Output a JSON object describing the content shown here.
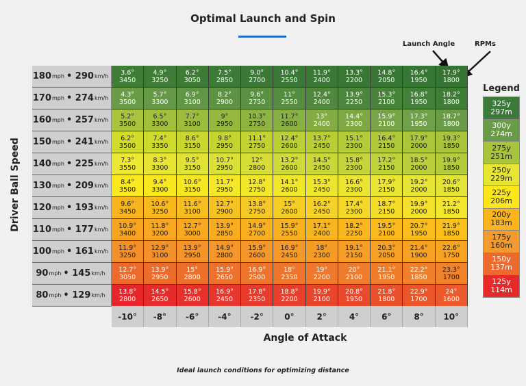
{
  "chart_data": {
    "type": "table",
    "title": "Optimal Launch and Spin",
    "ylabel": "Driver Ball Speed",
    "xlabel": "Angle of Attack",
    "caption": "Ideal launch conditions for optimizing distance",
    "annotations": {
      "launch_angle": "Launch Angle",
      "rpms": "RPMs"
    },
    "columns": [
      "-10°",
      "-8°",
      "-6°",
      "-4°",
      "-2°",
      "0°",
      "2°",
      "4°",
      "6°",
      "8°",
      "10°"
    ],
    "rows": [
      {
        "mph": "180",
        "kmh": "290",
        "colors": [
          "#3f7d37",
          "#357433"
        ],
        "cells": [
          [
            "3.6°",
            "3450"
          ],
          [
            "4.9°",
            "3250"
          ],
          [
            "6.2°",
            "3050"
          ],
          [
            "7.5°",
            "2850"
          ],
          [
            "9.0°",
            "2700"
          ],
          [
            "10.4°",
            "2550"
          ],
          [
            "11.9°",
            "2400"
          ],
          [
            "13.3°",
            "2200"
          ],
          [
            "14.8°",
            "2050"
          ],
          [
            "16.4°",
            "1950"
          ],
          [
            "17.9°",
            "1800"
          ]
        ]
      },
      {
        "mph": "170",
        "kmh": "274",
        "colors": [
          "#6a9c48",
          "#3f7d37"
        ],
        "cells": [
          [
            "4.3°",
            "3500"
          ],
          [
            "5.7°",
            "3300"
          ],
          [
            "6.9°",
            "3100"
          ],
          [
            "8.2°",
            "2900"
          ],
          [
            "9.6°",
            "2750"
          ],
          [
            "11°",
            "2550"
          ],
          [
            "12.4°",
            "2400"
          ],
          [
            "13.9°",
            "2250"
          ],
          [
            "15.3°",
            "2100"
          ],
          [
            "16.8°",
            "1950"
          ],
          [
            "18.2°",
            "1800"
          ]
        ]
      },
      {
        "mph": "160",
        "kmh": "257",
        "colors": [
          "#a8c43c",
          "#6a9c48"
        ],
        "cells": [
          [
            "5.2°",
            "3500"
          ],
          [
            "6.5°",
            "3300"
          ],
          [
            "7.7°",
            "3100"
          ],
          [
            "9°",
            "2950"
          ],
          [
            "10.3°",
            "2750"
          ],
          [
            "11.7°",
            "2600"
          ],
          [
            "13°",
            "2400"
          ],
          [
            "14.4°",
            "2300"
          ],
          [
            "15.9°",
            "2100"
          ],
          [
            "17.3°",
            "1950"
          ],
          [
            "18.7°",
            "1800"
          ]
        ]
      },
      {
        "mph": "150",
        "kmh": "241",
        "colors": [
          "#d2dc2a",
          "#a8c43c"
        ],
        "cells": [
          [
            "6.2°",
            "3500"
          ],
          [
            "7.4°",
            "3350"
          ],
          [
            "8.6°",
            "3150"
          ],
          [
            "9.8°",
            "2950"
          ],
          [
            "11.1°",
            "2750"
          ],
          [
            "12.4°",
            "2600"
          ],
          [
            "13.7°",
            "2450"
          ],
          [
            "15.1°",
            "2300"
          ],
          [
            "16.4°",
            "2150"
          ],
          [
            "17.9°",
            "2000"
          ],
          [
            "19.3°",
            "1850"
          ]
        ]
      },
      {
        "mph": "140",
        "kmh": "225",
        "colors": [
          "#ece834",
          "#b4cc3c"
        ],
        "cells": [
          [
            "7.3°",
            "3550"
          ],
          [
            "8.3°",
            "3300"
          ],
          [
            "9.5°",
            "3150"
          ],
          [
            "10.7°",
            "2950"
          ],
          [
            "12°",
            "2800"
          ],
          [
            "13.2°",
            "2600"
          ],
          [
            "14.5°",
            "2450"
          ],
          [
            "15.8°",
            "2300"
          ],
          [
            "17.2°",
            "2150"
          ],
          [
            "18.5°",
            "2000"
          ],
          [
            "19.9°",
            "1850"
          ]
        ]
      },
      {
        "mph": "130",
        "kmh": "209",
        "colors": [
          "#fbe81e",
          "#e4e436"
        ],
        "cells": [
          [
            "8.4°",
            "3500"
          ],
          [
            "9.4°",
            "3300"
          ],
          [
            "10.6°",
            "3150"
          ],
          [
            "11.7°",
            "2950"
          ],
          [
            "12.8°",
            "2750"
          ],
          [
            "14.1°",
            "2600"
          ],
          [
            "15.3°",
            "2450"
          ],
          [
            "16.6°",
            "2300"
          ],
          [
            "17.9°",
            "2150"
          ],
          [
            "19.2°",
            "2000"
          ],
          [
            "20.6°",
            "1850"
          ]
        ]
      },
      {
        "mph": "120",
        "kmh": "193",
        "colors": [
          "#f8b41e",
          "#f4e62c"
        ],
        "cells": [
          [
            "9.6°",
            "3450"
          ],
          [
            "10.6°",
            "3250"
          ],
          [
            "11.6°",
            "3100"
          ],
          [
            "12.7°",
            "2900"
          ],
          [
            "13.8°",
            "2750"
          ],
          [
            "15°",
            "2600"
          ],
          [
            "16.2°",
            "2450"
          ],
          [
            "17.4°",
            "2300"
          ],
          [
            "18.7°",
            "2150"
          ],
          [
            "19.9°",
            "2000"
          ],
          [
            "21.2°",
            "1850"
          ]
        ]
      },
      {
        "mph": "110",
        "kmh": "177",
        "colors": [
          "#f6a422",
          "#fbc01c"
        ],
        "cells": [
          [
            "10.9°",
            "3400"
          ],
          [
            "11.8°",
            "3200"
          ],
          [
            "12.7°",
            "3000"
          ],
          [
            "13.9°",
            "2850"
          ],
          [
            "14.9°",
            "2700"
          ],
          [
            "15.9°",
            "2550"
          ],
          [
            "17.1°",
            "2400"
          ],
          [
            "18.2°",
            "2250"
          ],
          [
            "19.5°",
            "2100"
          ],
          [
            "20.7°",
            "1950"
          ],
          [
            "21.9°",
            "1850"
          ]
        ]
      },
      {
        "mph": "100",
        "kmh": "161",
        "colors": [
          "#f3902c",
          "#f7a424"
        ],
        "cells": [
          [
            "11.9°",
            "3250"
          ],
          [
            "12.9°",
            "3100"
          ],
          [
            "13.9°",
            "2950"
          ],
          [
            "14.9°",
            "2800"
          ],
          [
            "15.9°",
            "2600"
          ],
          [
            "16.9°",
            "2450"
          ],
          [
            "18°",
            "2300"
          ],
          [
            "19.1°",
            "2150"
          ],
          [
            "20.3°",
            "2050"
          ],
          [
            "21.4°",
            "1900"
          ],
          [
            "22.6°",
            "1750"
          ]
        ]
      },
      {
        "mph": "90",
        "kmh": "145",
        "colors": [
          "#ec6a2c",
          "#f0822c"
        ],
        "cells": [
          [
            "12.7°",
            "3050"
          ],
          [
            "13.9°",
            "2950"
          ],
          [
            "15°",
            "2800"
          ],
          [
            "15.9°",
            "2650"
          ],
          [
            "16.9°",
            "2500"
          ],
          [
            "18°",
            "2350"
          ],
          [
            "19°",
            "2200"
          ],
          [
            "20°",
            "2100"
          ],
          [
            "21.1°",
            "1950"
          ],
          [
            "22.2°",
            "1850"
          ],
          [
            "23.3°",
            "1700"
          ]
        ]
      },
      {
        "mph": "80",
        "kmh": "129",
        "colors": [
          "#e6262a",
          "#ea5a2c"
        ],
        "cells": [
          [
            "13.8°",
            "2800"
          ],
          [
            "14.5°",
            "2650"
          ],
          [
            "15.8°",
            "2600"
          ],
          [
            "16.9°",
            "2450"
          ],
          [
            "17.8°",
            "2350"
          ],
          [
            "18.8°",
            "2200"
          ],
          [
            "19.9°",
            "2100"
          ],
          [
            "20.8°",
            "1950"
          ],
          [
            "21.8°",
            "1800"
          ],
          [
            "22.9°",
            "1700"
          ],
          [
            "24°",
            "1600"
          ]
        ]
      }
    ],
    "units": {
      "mph": "mph",
      "kmh": "km/h",
      "separator": "•"
    },
    "legend": {
      "title": "Legend",
      "items": [
        {
          "yards": "325y",
          "meters": "297m",
          "color": "#3b7a38",
          "text": "#ffffff"
        },
        {
          "yards": "300y",
          "meters": "274m",
          "color": "#6a9c48",
          "text": "#ffffff"
        },
        {
          "yards": "275y",
          "meters": "251m",
          "color": "#a8c43c",
          "text": "#222222"
        },
        {
          "yards": "250y",
          "meters": "229m",
          "color": "#e6e632",
          "text": "#222222"
        },
        {
          "yards": "225y",
          "meters": "206m",
          "color": "#fde61a",
          "text": "#222222"
        },
        {
          "yards": "200y",
          "meters": "183m",
          "color": "#fbb41e",
          "text": "#222222"
        },
        {
          "yards": "175y",
          "meters": "160m",
          "color": "#f59a2e",
          "text": "#222222"
        },
        {
          "yards": "150y",
          "meters": "137m",
          "color": "#ee6a2c",
          "text": "#ffffff"
        },
        {
          "yards": "125y",
          "meters": "114m",
          "color": "#e62a2a",
          "text": "#ffffff"
        }
      ]
    }
  }
}
